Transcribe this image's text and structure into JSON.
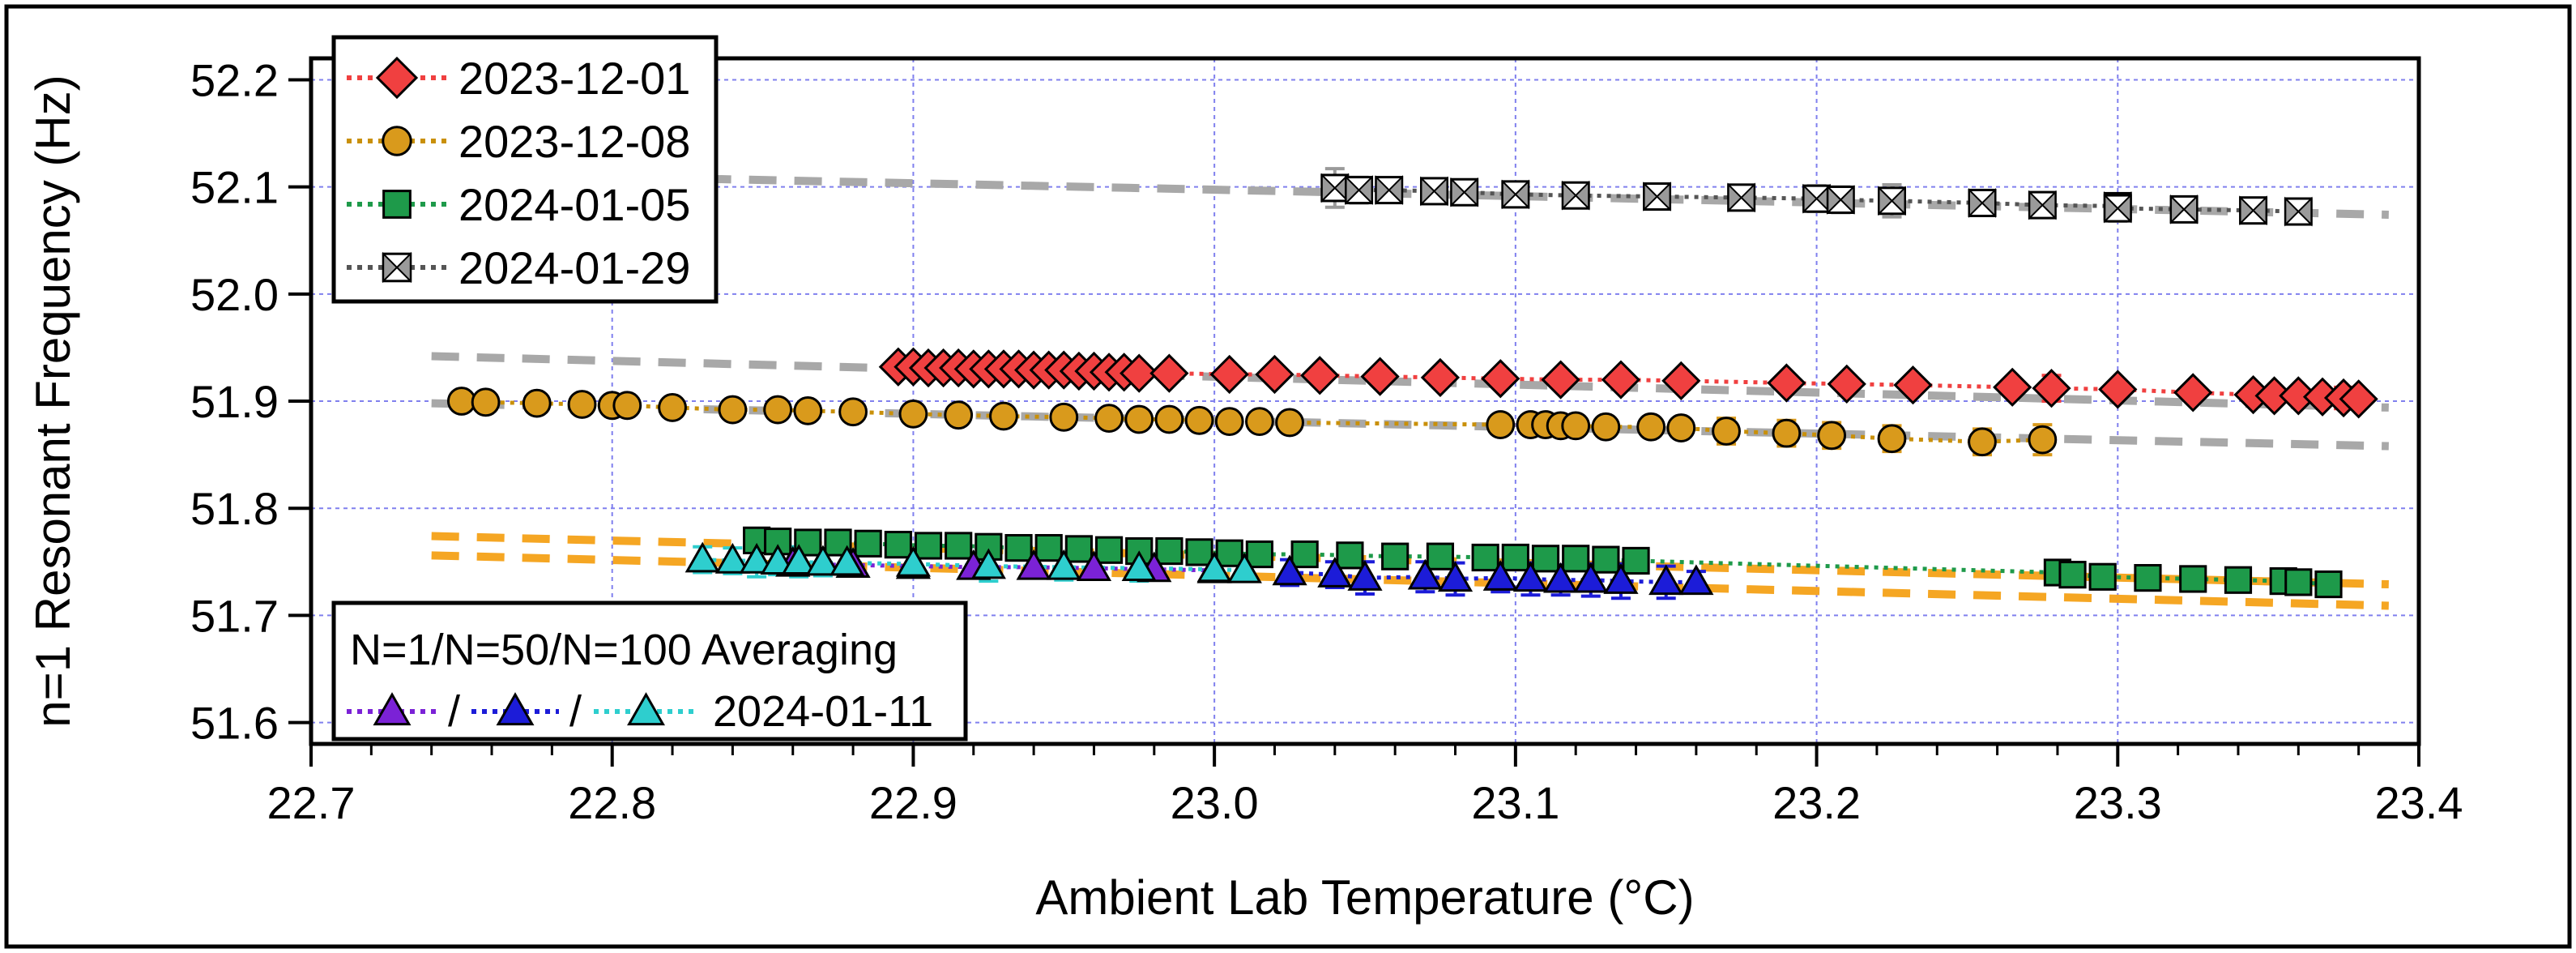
{
  "chart_data": {
    "type": "scatter",
    "title": "",
    "xlabel": "Ambient Lab Temperature (°C)",
    "ylabel": "n=1 Resonant Frequency (Hz)",
    "xlim": [
      22.7,
      23.4
    ],
    "ylim": [
      51.58,
      52.22
    ],
    "xticks": [
      "22.7",
      "22.8",
      "22.9",
      "23.0",
      "23.1",
      "23.2",
      "23.3",
      "23.4"
    ],
    "yticks": [
      "51.6",
      "51.7",
      "51.8",
      "51.9",
      "52.0",
      "52.1",
      "52.2"
    ],
    "grid": true,
    "legend_main": {
      "placement": "top-left",
      "entries": [
        "2023-12-01",
        "2023-12-08",
        "2024-01-05",
        "2024-01-29"
      ]
    },
    "legend_avg": {
      "placement": "bottom-left",
      "title": "N=1/N=50/N=100 Averaging",
      "sep1": "/",
      "sep2": "/",
      "date": "2024-01-11"
    },
    "series": [
      {
        "name": "2023-12-01",
        "marker": "diamond",
        "color": "#f04040",
        "stroke": "#000000",
        "line_color": "#f04040",
        "x": [
          22.895,
          22.9,
          22.905,
          22.91,
          22.915,
          22.92,
          22.925,
          22.93,
          22.935,
          22.94,
          22.945,
          22.95,
          22.955,
          22.96,
          22.965,
          22.97,
          22.975,
          22.985,
          23.005,
          23.02,
          23.035,
          23.055,
          23.075,
          23.095,
          23.115,
          23.135,
          23.155,
          23.19,
          23.21,
          23.232,
          23.265,
          23.278,
          23.3,
          23.325,
          23.345,
          23.352,
          23.36,
          23.368,
          23.375,
          23.38
        ],
        "y": [
          51.932,
          51.932,
          51.931,
          51.931,
          51.931,
          51.93,
          51.93,
          51.93,
          51.93,
          51.929,
          51.929,
          51.929,
          51.928,
          51.928,
          51.927,
          51.927,
          51.926,
          51.926,
          51.925,
          51.925,
          51.924,
          51.923,
          51.922,
          51.921,
          51.92,
          51.92,
          51.919,
          51.917,
          51.916,
          51.915,
          51.913,
          51.912,
          51.911,
          51.908,
          51.906,
          51.905,
          51.905,
          51.904,
          51.903,
          51.902
        ],
        "err": [
          0,
          0,
          0,
          0,
          0,
          0,
          0,
          0,
          0,
          0,
          0,
          0,
          0,
          0,
          0,
          0,
          0,
          0,
          0,
          0,
          0,
          0,
          0,
          0,
          0,
          0,
          0,
          0,
          0,
          0,
          0,
          0.012,
          0,
          0,
          0,
          0,
          0,
          0,
          0.01,
          0
        ]
      },
      {
        "name": "2023-12-08",
        "marker": "circle",
        "color": "#d99a1c",
        "stroke": "#000000",
        "line_color": "#c9900a",
        "x": [
          22.75,
          22.758,
          22.775,
          22.79,
          22.8,
          22.805,
          22.82,
          22.84,
          22.855,
          22.865,
          22.88,
          22.9,
          22.915,
          22.93,
          22.95,
          22.965,
          22.975,
          22.985,
          22.995,
          23.005,
          23.015,
          23.025,
          23.095,
          23.105,
          23.11,
          23.115,
          23.12,
          23.13,
          23.145,
          23.155,
          23.17,
          23.19,
          23.205,
          23.225,
          23.255,
          23.275
        ],
        "y": [
          51.9,
          51.899,
          51.898,
          51.897,
          51.896,
          51.896,
          51.894,
          51.892,
          51.892,
          51.891,
          51.89,
          51.888,
          51.887,
          51.886,
          51.885,
          51.884,
          51.883,
          51.883,
          51.882,
          51.881,
          51.881,
          51.88,
          51.878,
          51.878,
          51.878,
          51.877,
          51.877,
          51.876,
          51.876,
          51.875,
          51.872,
          51.87,
          51.868,
          51.865,
          51.862,
          51.864
        ],
        "err": [
          0,
          0,
          0,
          0,
          0,
          0,
          0,
          0,
          0,
          0,
          0,
          0,
          0,
          0,
          0,
          0,
          0,
          0,
          0,
          0,
          0,
          0,
          0,
          0,
          0,
          0,
          0,
          0,
          0,
          0,
          0.012,
          0.012,
          0.012,
          0.012,
          0.012,
          0.014
        ]
      },
      {
        "name": "2024-01-05",
        "marker": "square",
        "color": "#1e9a4a",
        "stroke": "#000000",
        "line_color": "#1e9a4a",
        "x": [
          22.848,
          22.855,
          22.865,
          22.875,
          22.885,
          22.895,
          22.905,
          22.915,
          22.925,
          22.935,
          22.945,
          22.955,
          22.965,
          22.975,
          22.985,
          22.995,
          23.005,
          23.015,
          23.03,
          23.045,
          23.06,
          23.075,
          23.09,
          23.1,
          23.11,
          23.12,
          23.13,
          23.14,
          23.28,
          23.285,
          23.295,
          23.31,
          23.325,
          23.34,
          23.355,
          23.36,
          23.37
        ],
        "y": [
          51.77,
          51.769,
          51.768,
          51.768,
          51.767,
          51.766,
          51.765,
          51.765,
          51.764,
          51.763,
          51.763,
          51.762,
          51.761,
          51.76,
          51.76,
          51.759,
          51.758,
          51.757,
          51.757,
          51.756,
          51.755,
          51.755,
          51.754,
          51.754,
          51.753,
          51.753,
          51.752,
          51.751,
          51.74,
          51.738,
          51.736,
          51.735,
          51.734,
          51.733,
          51.732,
          51.731,
          51.729
        ],
        "err": [
          0,
          0,
          0,
          0,
          0,
          0,
          0,
          0,
          0,
          0,
          0,
          0,
          0,
          0,
          0,
          0,
          0,
          0,
          0,
          0,
          0,
          0,
          0,
          0,
          0,
          0,
          0,
          0,
          0,
          0,
          0,
          0,
          0,
          0,
          0,
          0,
          0
        ]
      },
      {
        "name": "2024-01-29",
        "marker": "bowtie",
        "color": "#9a9a9a",
        "stroke": "#000000",
        "line_color": "#555555",
        "x": [
          23.04,
          23.048,
          23.058,
          23.073,
          23.083,
          23.1,
          23.12,
          23.147,
          23.175,
          23.2,
          23.208,
          23.225,
          23.255,
          23.275,
          23.3,
          23.3,
          23.322,
          23.345,
          23.36
        ],
        "y": [
          52.099,
          52.097,
          52.097,
          52.096,
          52.095,
          52.093,
          52.092,
          52.091,
          52.09,
          52.089,
          52.088,
          52.087,
          52.085,
          52.083,
          52.082,
          52.08,
          52.079,
          52.078,
          52.077
        ],
        "err": [
          0.018,
          0.012,
          0,
          0,
          0,
          0,
          0,
          0,
          0,
          0.012,
          0.012,
          0.015,
          0,
          0,
          0.01,
          0.012,
          0,
          0,
          0
        ]
      },
      {
        "name": "N=1 2024-01-11",
        "marker": "triangle",
        "color": "#7b22d6",
        "stroke": "#000000",
        "line_color": "#7b22d6",
        "x": [
          22.86,
          22.88,
          22.9,
          22.92,
          22.94,
          22.96,
          22.98,
          23.0
        ],
        "y": [
          51.748,
          51.747,
          51.746,
          51.745,
          51.745,
          51.744,
          51.743,
          51.742
        ],
        "err": [
          0,
          0,
          0,
          0,
          0,
          0,
          0,
          0
        ]
      },
      {
        "name": "N=50 2024-01-11",
        "marker": "triangle",
        "color": "#1c1cd8",
        "stroke": "#000000",
        "line_color": "#1c1cd8",
        "x": [
          23.025,
          23.04,
          23.05,
          23.07,
          23.08,
          23.095,
          23.105,
          23.115,
          23.125,
          23.135,
          23.15,
          23.16
        ],
        "y": [
          51.74,
          51.738,
          51.735,
          51.736,
          51.734,
          51.735,
          51.734,
          51.733,
          51.733,
          51.732,
          51.731,
          51.731
        ],
        "err": [
          0.012,
          0.012,
          0.015,
          0.014,
          0.015,
          0.013,
          0.015,
          0.014,
          0.015,
          0.016,
          0.015,
          0.01
        ]
      },
      {
        "name": "N=100 2024-01-11",
        "marker": "triangle",
        "color": "#2ecece",
        "stroke": "#000000",
        "line_color": "#2ecece",
        "x": [
          22.83,
          22.84,
          22.848,
          22.855,
          22.862,
          22.87,
          22.878,
          22.9,
          22.925,
          22.95,
          22.975,
          23.0,
          23.01
        ],
        "y": [
          51.752,
          51.751,
          51.751,
          51.75,
          51.75,
          51.749,
          51.749,
          51.748,
          51.746,
          51.745,
          51.744,
          51.743,
          51.742
        ],
        "err": [
          0.012,
          0.012,
          0.015,
          0.012,
          0.014,
          0.012,
          0.012,
          0.012,
          0.014,
          0.012,
          0.012,
          0.01,
          0.01
        ]
      }
    ],
    "fit_lines": [
      {
        "color": "#a8a8a8",
        "x": [
          22.74,
          23.39
        ],
        "y": [
          52.113,
          52.074
        ]
      },
      {
        "color": "#a8a8a8",
        "x": [
          22.74,
          23.39
        ],
        "y": [
          51.942,
          51.894
        ]
      },
      {
        "color": "#a8a8a8",
        "x": [
          22.74,
          23.39
        ],
        "y": [
          51.898,
          51.858
        ]
      },
      {
        "color": "#f5a623",
        "x": [
          22.74,
          23.39
        ],
        "y": [
          51.774,
          51.729
        ]
      },
      {
        "color": "#f5a623",
        "x": [
          22.74,
          23.39
        ],
        "y": [
          51.756,
          51.709
        ]
      }
    ]
  }
}
